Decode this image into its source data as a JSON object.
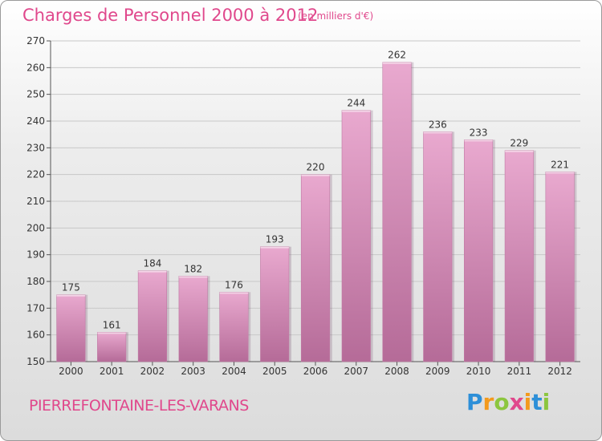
{
  "title": "Charges de Personnel 2000 à 2012",
  "subtitle": "(en milliers d'€)",
  "place": "PIERREFONTAINE-LES-VARANS",
  "logo": {
    "letters": [
      "P",
      "r",
      "o",
      "x",
      "i",
      "t",
      "i"
    ],
    "colors": [
      "#2d8fd8",
      "#f39a1d",
      "#8cc63f",
      "#e0488c",
      "#f39a1d",
      "#2d8fd8",
      "#8cc63f"
    ]
  },
  "colors": {
    "accent": "#e0488c",
    "bar_top": "#e9a9cf",
    "bar_bottom": "#b56b98"
  },
  "chart_data": {
    "type": "bar",
    "categories": [
      "2000",
      "2001",
      "2002",
      "2003",
      "2004",
      "2005",
      "2006",
      "2007",
      "2008",
      "2009",
      "2010",
      "2011",
      "2012"
    ],
    "values": [
      175,
      161,
      184,
      182,
      176,
      193,
      220,
      244,
      262,
      236,
      233,
      229,
      221
    ],
    "ylim": [
      150,
      270
    ],
    "yticks": [
      150,
      160,
      170,
      180,
      190,
      200,
      210,
      220,
      230,
      240,
      250,
      260,
      270
    ],
    "grid": true,
    "legend": "none"
  }
}
